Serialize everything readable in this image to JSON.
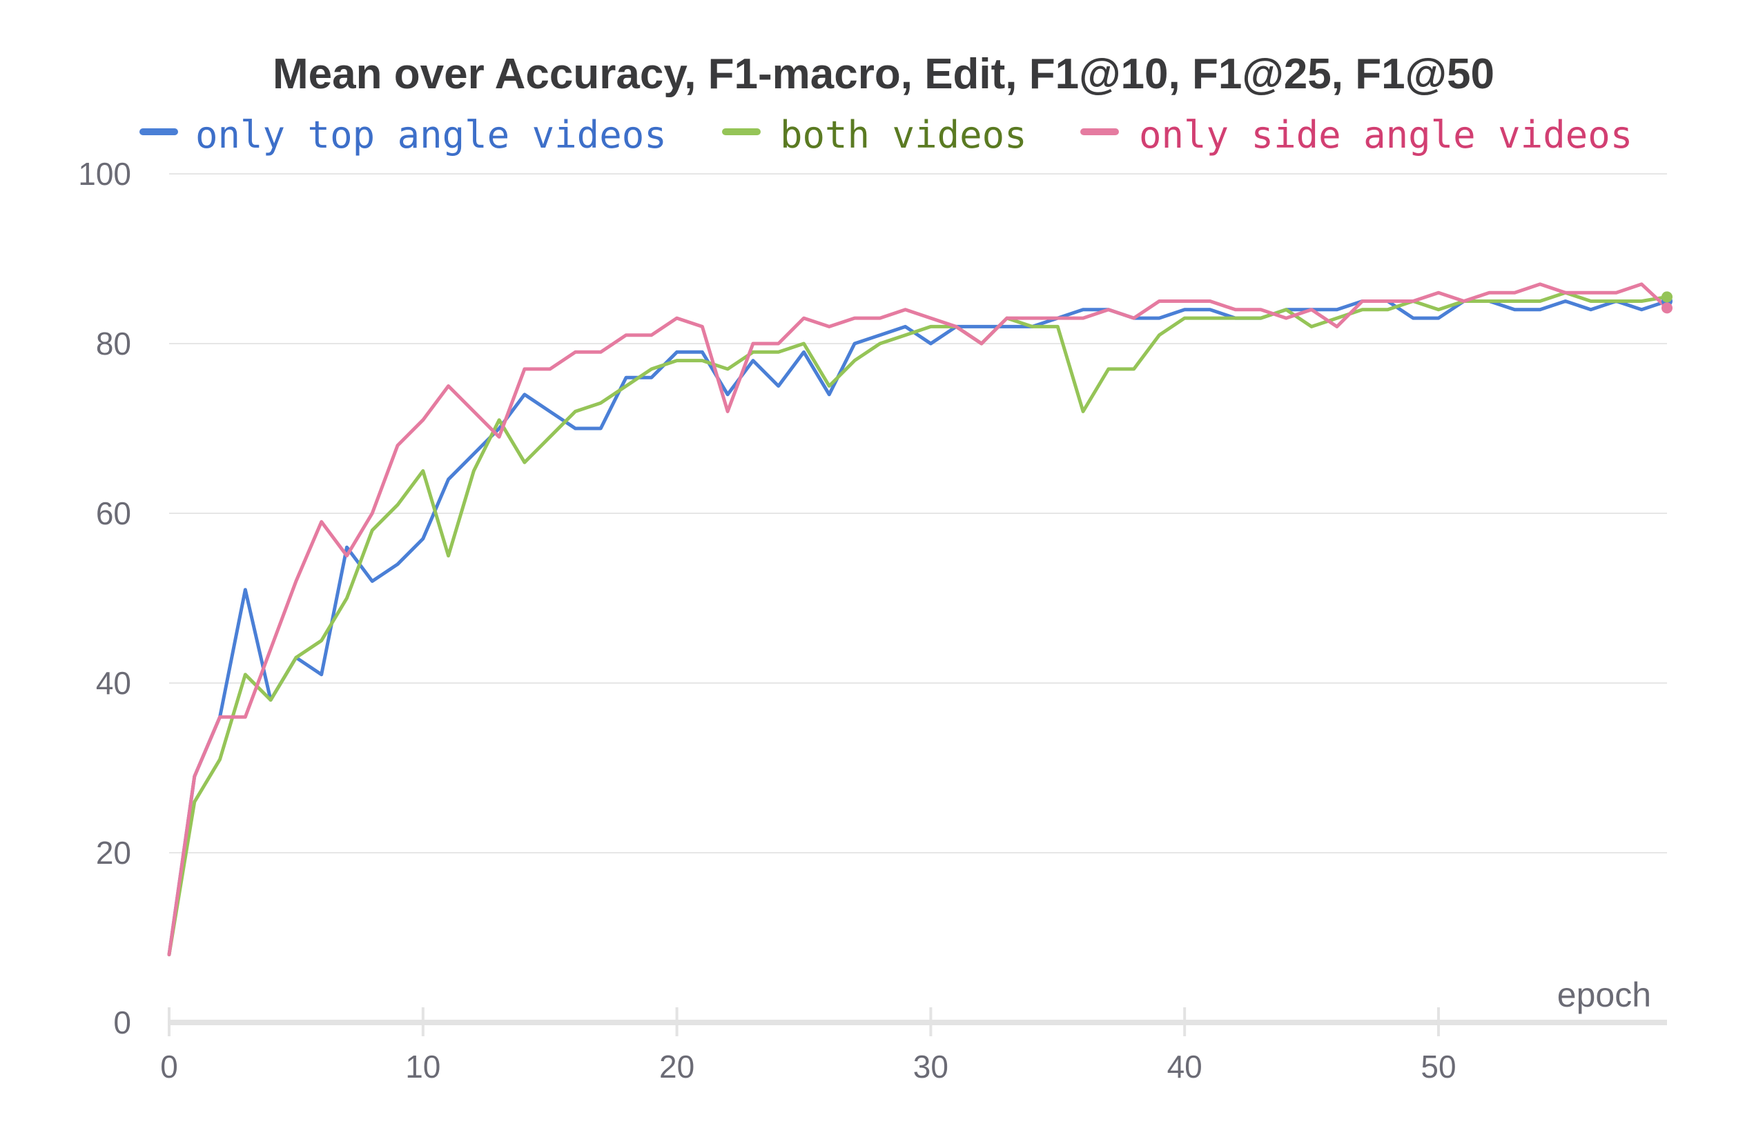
{
  "chart_data": {
    "type": "line",
    "title": "Mean over Accuracy, F1-macro, Edit, F1@10, F1@25, F1@50",
    "xlabel": "epoch",
    "ylabel": "",
    "xlim": [
      0,
      59
    ],
    "ylim": [
      0,
      100
    ],
    "x_ticks": [
      "0",
      "10",
      "20",
      "30",
      "40",
      "50"
    ],
    "y_ticks": [
      "0",
      "20",
      "40",
      "60",
      "80",
      "100"
    ],
    "grid": true,
    "legend_position": "top",
    "x": [
      0,
      1,
      2,
      3,
      4,
      5,
      6,
      7,
      8,
      9,
      10,
      11,
      12,
      13,
      14,
      15,
      16,
      17,
      18,
      19,
      20,
      21,
      22,
      23,
      24,
      25,
      26,
      27,
      28,
      29,
      30,
      31,
      32,
      33,
      34,
      35,
      36,
      37,
      38,
      39,
      40,
      41,
      42,
      43,
      44,
      45,
      46,
      47,
      48,
      49,
      50,
      51,
      52,
      53,
      54,
      55,
      56,
      57,
      58,
      59
    ],
    "series": [
      {
        "name": "only top angle videos",
        "color": "#4a7fd6",
        "values": [
          8,
          29,
          36,
          51,
          38,
          43,
          41,
          56,
          52,
          54,
          57,
          64,
          67,
          70,
          74,
          72,
          70,
          70,
          76,
          76,
          79,
          79,
          74,
          78,
          75,
          79,
          74,
          80,
          81,
          82,
          80,
          82,
          82,
          82,
          82,
          83,
          84,
          84,
          83,
          83,
          84,
          84,
          83,
          83,
          84,
          84,
          84,
          85,
          85,
          83,
          83,
          85,
          85,
          84,
          84,
          85,
          84,
          85,
          84,
          85
        ]
      },
      {
        "name": "both videos",
        "color": "#95c457",
        "values": [
          8,
          26,
          31,
          41,
          38,
          43,
          45,
          50,
          58,
          61,
          65,
          55,
          65,
          71,
          66,
          69,
          72,
          73,
          75,
          77,
          78,
          78,
          77,
          79,
          79,
          80,
          75,
          78,
          80,
          81,
          82,
          82,
          80,
          83,
          82,
          82,
          72,
          77,
          77,
          81,
          83,
          83,
          83,
          83,
          84,
          82,
          83,
          84,
          84,
          85,
          84,
          85,
          85,
          85,
          85,
          86,
          85,
          85,
          85,
          85.5
        ]
      },
      {
        "name": "only side angle videos",
        "color": "#e57ba0",
        "values": [
          8,
          29,
          36,
          36,
          44,
          52,
          59,
          55,
          60,
          68,
          71,
          75,
          72,
          69,
          77,
          77,
          79,
          79,
          81,
          81,
          83,
          82,
          72,
          80,
          80,
          83,
          82,
          83,
          83,
          84,
          83,
          82,
          80,
          83,
          83,
          83,
          83,
          84,
          83,
          85,
          85,
          85,
          84,
          84,
          83,
          84,
          82,
          85,
          85,
          85,
          86,
          85,
          86,
          86,
          87,
          86,
          86,
          86,
          87,
          84.2
        ]
      }
    ]
  },
  "legend_text_colors": [
    "#3d6fc9",
    "#5a7a22",
    "#d23f72"
  ]
}
